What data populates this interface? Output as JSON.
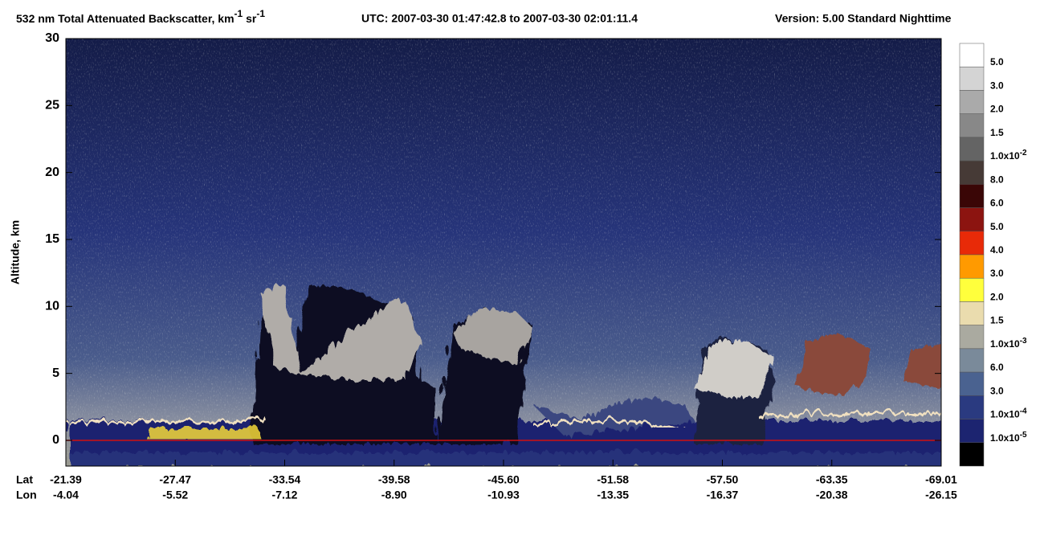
{
  "chart_data": {
    "type": "image",
    "title_parts": [
      "532 nm Total Attenuated Backscatter, km",
      "-1",
      " sr",
      "-1"
    ],
    "utc": "UTC:  2007-03-30 01:47:42.8  to  2007-03-30 02:01:11.4",
    "version": "Version: 5.00  Standard  Nighttime",
    "ylabel": "Altitude, km",
    "ylim": [
      -1.92,
      30
    ],
    "yticks": [
      0,
      5,
      10,
      15,
      20,
      25,
      30
    ],
    "x_row_labels": [
      "Lat",
      "Lon"
    ],
    "lat": [
      "-21.39",
      "-27.47",
      "-33.54",
      "-39.58",
      "-45.60",
      "-51.58",
      "-57.50",
      "-63.35",
      "-69.01"
    ],
    "lon": [
      "-4.04",
      "-5.52",
      "-7.12",
      "-8.90",
      "-10.93",
      "-13.35",
      "-16.37",
      "-20.38",
      "-26.15"
    ],
    "colorbar": {
      "colors": [
        "#ffffff",
        "#d4d4d4",
        "#aaaaaa",
        "#888888",
        "#646464",
        "#463a36",
        "#3a0606",
        "#8c1410",
        "#e82a08",
        "#ff9a00",
        "#ffff3c",
        "#eadcae",
        "#aaaaa0",
        "#7a8a9a",
        "#4a6290",
        "#2a3a80",
        "#1c2470",
        "#000000"
      ],
      "labels": [
        {
          "text": "5.0"
        },
        {
          "text": "3.0"
        },
        {
          "text": "2.0"
        },
        {
          "text": "1.5"
        },
        {
          "text": "1.0x10",
          "sup": "-2"
        },
        {
          "text": "8.0"
        },
        {
          "text": "6.0"
        },
        {
          "text": "5.0"
        },
        {
          "text": "4.0"
        },
        {
          "text": "3.0"
        },
        {
          "text": "2.0"
        },
        {
          "text": "1.5"
        },
        {
          "text": "1.0x10",
          "sup": "-3"
        },
        {
          "text": "6.0"
        },
        {
          "text": "3.0"
        },
        {
          "text": "1.0x10",
          "sup": "-4"
        },
        {
          "text": "1.0x10",
          "sup": "-5"
        }
      ]
    }
  }
}
